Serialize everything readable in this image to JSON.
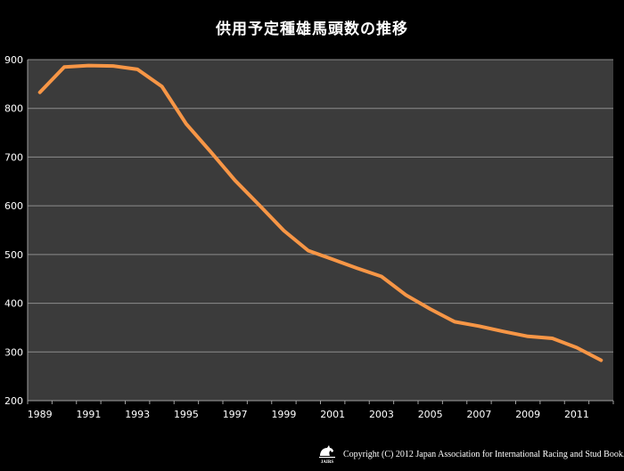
{
  "chart_data": {
    "type": "line",
    "title": "供用予定種雄馬頭数の推移",
    "xlabel": "",
    "ylabel": "",
    "ylim": [
      200,
      900
    ],
    "y_ticks": [
      "200",
      "300",
      "400",
      "500",
      "600",
      "700",
      "800",
      "900"
    ],
    "x_ticks": [
      "1989",
      "1991",
      "1993",
      "1995",
      "1997",
      "1999",
      "2001",
      "2003",
      "2005",
      "2007",
      "2009",
      "2011"
    ],
    "grid": "horizontal",
    "x": [
      1989,
      1990,
      1991,
      1992,
      1993,
      1994,
      1995,
      1996,
      1997,
      1998,
      1999,
      2000,
      2001,
      2002,
      2003,
      2004,
      2005,
      2006,
      2007,
      2008,
      2009,
      2010,
      2011,
      2012
    ],
    "series": [
      {
        "values": [
          833,
          885,
          888,
          887,
          880,
          845,
          768,
          711,
          652,
          601,
          549,
          508,
          490,
          472,
          455,
          417,
          388,
          362,
          353,
          342,
          332,
          328,
          309,
          283
        ]
      }
    ],
    "colors": {
      "background": "#000000",
      "plot_area": "#3b3b3b",
      "line": "#f79646",
      "grid": "#8c8c8c",
      "text": "#ffffff"
    }
  },
  "logo": {
    "text": "JAIRS"
  },
  "footer": {
    "copyright": "Copyright (C) 2012 Japan Association for International Racing and Stud Book."
  }
}
